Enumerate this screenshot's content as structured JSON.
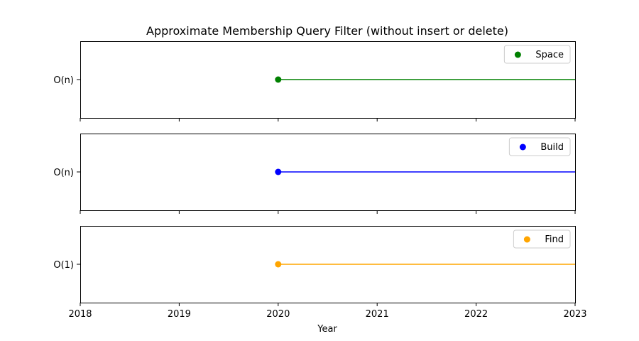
{
  "chart_data": {
    "type": "line",
    "title": "Approximate Membership Query Filter (without insert or delete)",
    "xlabel": "Year",
    "xlim": [
      2018,
      2023
    ],
    "x_ticks": [
      "2018",
      "2019",
      "2020",
      "2021",
      "2022",
      "2023"
    ],
    "grid": false,
    "subplots": [
      {
        "name": "Space",
        "ytick": "O(n)",
        "color": "#008000",
        "points": [
          {
            "x": 2020,
            "y": "O(n)"
          }
        ],
        "line_from": 2020,
        "legend": "top-right"
      },
      {
        "name": "Build",
        "ytick": "O(n)",
        "color": "#0000ff",
        "points": [
          {
            "x": 2020,
            "y": "O(n)"
          }
        ],
        "line_from": 2020,
        "legend": "top-right"
      },
      {
        "name": "Find",
        "ytick": "O(1)",
        "color": "#ffa500",
        "points": [
          {
            "x": 2020,
            "y": "O(1)"
          }
        ],
        "line_from": 2020,
        "legend": "top-right"
      }
    ]
  }
}
